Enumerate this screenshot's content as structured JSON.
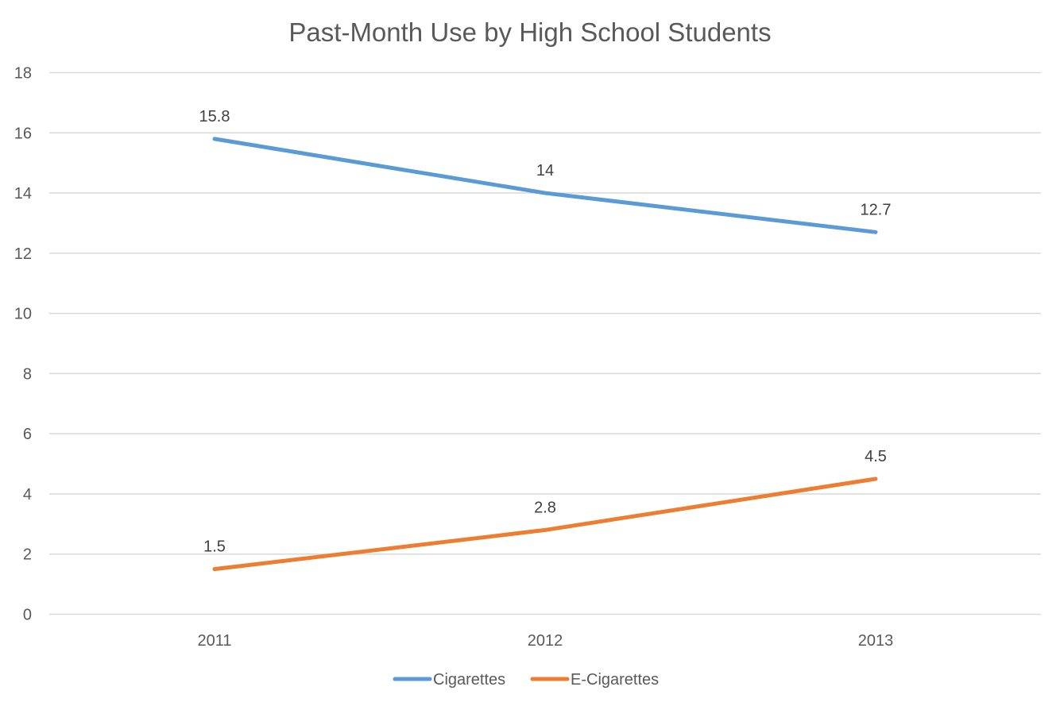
{
  "chart_data": {
    "type": "line",
    "title": "Past-Month Use by High School Students",
    "xlabel": "",
    "ylabel": "",
    "categories": [
      "2011",
      "2012",
      "2013"
    ],
    "ylim": [
      0,
      18
    ],
    "yticks": [
      0,
      2,
      4,
      6,
      8,
      10,
      12,
      14,
      16,
      18
    ],
    "grid": true,
    "legend_position": "bottom",
    "series": [
      {
        "name": "Cigarettes",
        "color": "#5b9bd5",
        "values": [
          15.8,
          14,
          12.7
        ],
        "labels": [
          "15.8",
          "14",
          "12.7"
        ]
      },
      {
        "name": "E-Cigarettes",
        "color": "#ed7d31",
        "values": [
          1.5,
          2.8,
          4.5
        ],
        "labels": [
          "1.5",
          "2.8",
          "4.5"
        ]
      }
    ]
  }
}
